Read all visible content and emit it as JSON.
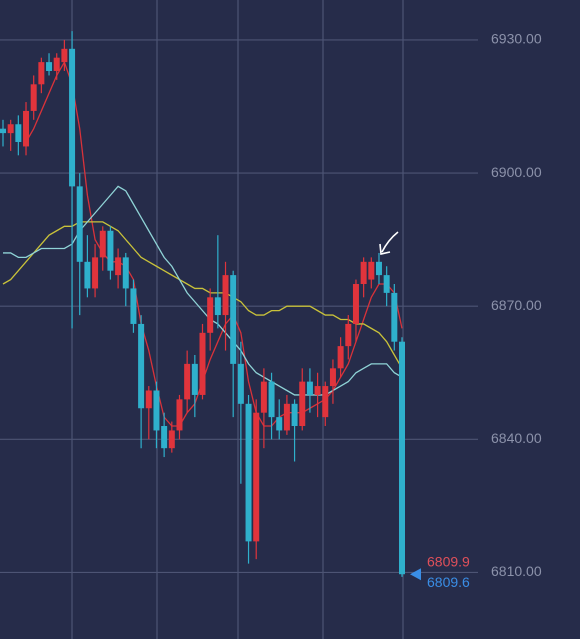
{
  "chart_data": {
    "type": "candlestick",
    "categories": [
      null,
      null,
      null,
      null,
      null,
      null,
      null,
      null,
      null,
      null,
      null,
      null,
      null,
      null,
      null,
      null,
      null,
      null,
      null,
      null,
      null,
      null,
      null,
      null,
      null,
      null,
      null,
      null,
      null,
      null,
      null,
      null,
      null,
      null,
      null,
      null,
      null,
      null,
      null,
      null,
      null,
      null,
      null,
      null,
      null,
      null,
      null,
      null,
      null,
      null,
      null,
      null,
      null
    ],
    "open": [
      6910,
      6909,
      6911,
      6906,
      6914,
      6920,
      6925,
      6923,
      6925,
      6928,
      6897,
      6880,
      6874,
      6881,
      6887,
      6877,
      6881,
      6874,
      6866,
      6847,
      6851,
      6843,
      6838,
      6842,
      6849,
      6857,
      6850,
      6864,
      6872,
      6868,
      6877,
      6857,
      6848,
      6817,
      6846,
      6853,
      6845,
      6842,
      6848,
      6843,
      6853,
      6850,
      6845,
      6852,
      6856,
      6861,
      6866,
      6875,
      6876,
      6880,
      6877,
      6873,
      6862
    ],
    "high": [
      6912,
      6912,
      6913,
      6916,
      6922,
      6926,
      6927,
      6927,
      6930,
      6932,
      6900,
      6886,
      6884,
      6888,
      6888,
      6883,
      6882,
      6876,
      6868,
      6852,
      6853,
      6846,
      6844,
      6850,
      6860,
      6859,
      6866,
      6874,
      6886,
      6880,
      6878,
      6862,
      6850,
      6849,
      6856,
      6855,
      6849,
      6850,
      6849,
      6856,
      6856,
      6855,
      6853,
      6858,
      6863,
      6868,
      6876,
      6881,
      6881,
      6882,
      6879,
      6875,
      6863
    ],
    "low": [
      6906,
      6905,
      6904,
      6904,
      6912,
      6918,
      6922,
      6921,
      6923,
      6865,
      6868,
      6872,
      6872,
      6878,
      6876,
      6874,
      6870,
      6864,
      6838,
      6840,
      6838,
      6836,
      6837,
      6840,
      6846,
      6845,
      6849,
      6860,
      6865,
      6860,
      6845,
      6830,
      6812,
      6813,
      6838,
      6840,
      6840,
      6841,
      6835,
      6842,
      6846,
      6845,
      6843,
      6848,
      6854,
      6858,
      6862,
      6872,
      6874,
      6875,
      6870,
      6860,
      6809
    ],
    "close": [
      6909,
      6911,
      6907,
      6914,
      6920,
      6925,
      6923,
      6926,
      6928,
      6897,
      6880,
      6874,
      6881,
      6887,
      6878,
      6881,
      6874,
      6866,
      6847,
      6851,
      6842,
      6838,
      6842,
      6849,
      6857,
      6850,
      6864,
      6872,
      6868,
      6877,
      6857,
      6848,
      6817,
      6846,
      6853,
      6845,
      6842,
      6848,
      6843,
      6853,
      6850,
      6852,
      6852,
      6856,
      6861,
      6866,
      6875,
      6880,
      6880,
      6877,
      6873,
      6862,
      6809.6
    ],
    "up_color": "#e0343c",
    "down_color": "#2fb0cc",
    "series": [
      {
        "color": "#d8323a",
        "values": [
          null,
          null,
          null,
          6907,
          6910,
          6914,
          6918,
          6922,
          6925,
          6920,
          6910,
          6895,
          6885,
          6882,
          6880,
          6880,
          6879,
          6876,
          6866,
          6860,
          6852,
          6845,
          6843,
          6843,
          6846,
          6848,
          6853,
          6858,
          6862,
          6866,
          6868,
          6864,
          6853,
          6846,
          6843,
          6843,
          6845,
          6846,
          6846,
          6846,
          6847,
          6848,
          6849,
          6851,
          6854,
          6857,
          6862,
          6867,
          6872,
          6875,
          6875,
          6873,
          6865
        ]
      },
      {
        "color": "#c9c23a",
        "values": [
          6875,
          6876,
          6878,
          6880,
          6882,
          6884,
          6886,
          6887,
          6888,
          6888,
          6889,
          6889,
          6889,
          6889,
          6888,
          6887,
          6885,
          6883,
          6881,
          6880,
          6879,
          6878,
          6877,
          6876,
          6875,
          6874,
          6874,
          6873,
          6873,
          6873,
          6872,
          6871,
          6869,
          6868,
          6868,
          6869,
          6869,
          6870,
          6870,
          6870,
          6870,
          6869,
          6868,
          6868,
          6867,
          6867,
          6866,
          6866,
          6865,
          6864,
          6862,
          6859,
          6856
        ]
      },
      {
        "color": "#8fd3d6",
        "values": [
          6882,
          6882,
          6881,
          6881,
          6882,
          6883,
          6883,
          6883,
          6883,
          6884,
          6887,
          6889,
          6891,
          6893,
          6895,
          6897,
          6896,
          6893,
          6890,
          6887,
          6884,
          6881,
          6879,
          6876,
          6873,
          6871,
          6869,
          6867,
          6866,
          6864,
          6862,
          6860,
          6857,
          6855,
          6854,
          6853,
          6852,
          6851,
          6850,
          6850,
          6850,
          6850,
          6850,
          6851,
          6852,
          6853,
          6855,
          6856,
          6857,
          6857,
          6857,
          6855,
          6854
        ]
      }
    ],
    "ylim": [
      6795,
      6939
    ],
    "yticks": [
      {
        "value": 6810,
        "label": "6810.00"
      },
      {
        "value": 6840,
        "label": "6840.00"
      },
      {
        "value": 6870,
        "label": "6870.00"
      },
      {
        "value": 6900,
        "label": "6900.00"
      },
      {
        "value": 6930,
        "label": "6930.00"
      }
    ],
    "grid": true,
    "price_labels": [
      {
        "value": 6809.9,
        "label": "6809.9",
        "color": "#e0505a"
      },
      {
        "value": 6809.6,
        "label": "6809.6",
        "color": "#3a8ee6"
      }
    ]
  }
}
